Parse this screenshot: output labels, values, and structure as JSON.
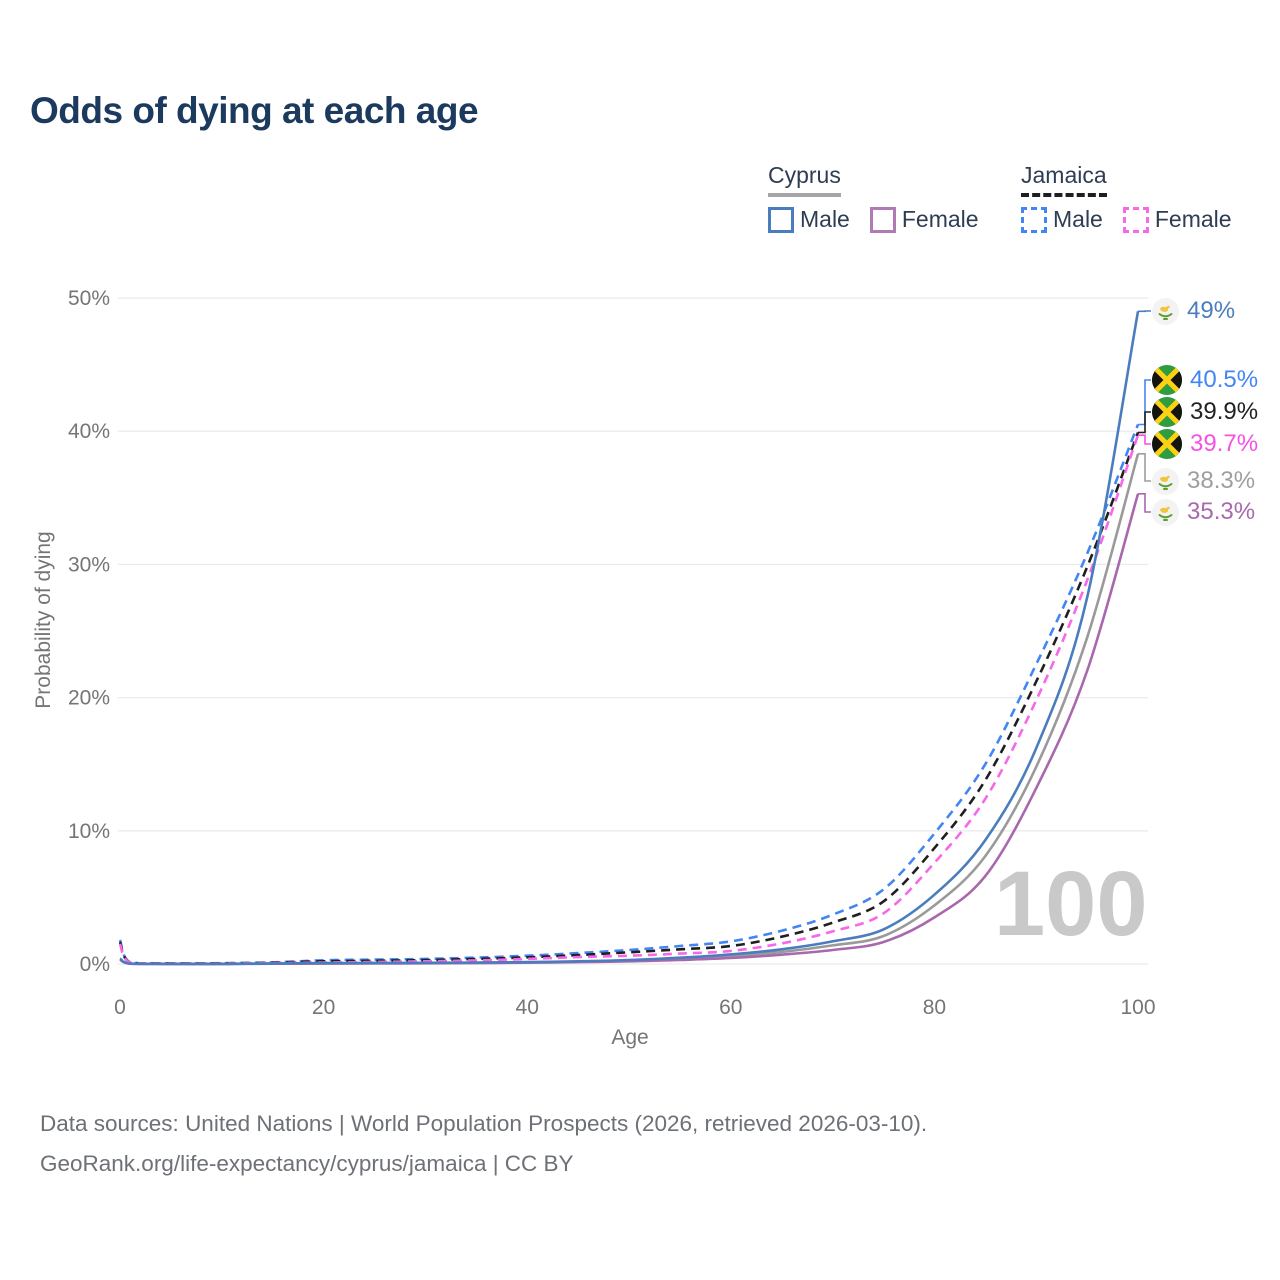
{
  "title": "Odds of dying at each age",
  "legend": {
    "groups": [
      {
        "label": "Cyprus",
        "line_style": "solid",
        "underline_color": "#a6a6a6",
        "items": [
          {
            "label": "Male",
            "color": "#4a7dbd",
            "dashed": false
          },
          {
            "label": "Female",
            "color": "#b07ab5",
            "dashed": false
          }
        ]
      },
      {
        "label": "Jamaica",
        "line_style": "dashed",
        "underline_color": "#1f1f1f",
        "items": [
          {
            "label": "Male",
            "color": "#4285f4",
            "dashed": true
          },
          {
            "label": "Female",
            "color": "#f768e8",
            "dashed": true
          }
        ]
      }
    ]
  },
  "y_axis": {
    "label": "Probability of dying",
    "ticks": [
      "0%",
      "10%",
      "20%",
      "30%",
      "40%",
      "50%"
    ],
    "tick_values": [
      0,
      10,
      20,
      30,
      40,
      50
    ]
  },
  "x_axis": {
    "label": "Age",
    "ticks": [
      "0",
      "20",
      "40",
      "60",
      "80",
      "100"
    ],
    "tick_values": [
      0,
      20,
      40,
      60,
      80,
      100
    ]
  },
  "watermark": "100",
  "footer": {
    "line1": "Data sources: United Nations | World Population Prospects (2026, retrieved 2026-03-10).",
    "line2": "GeoRank.org/life-expectancy/cyprus/jamaica | CC BY"
  },
  "chart_data": {
    "type": "line",
    "title": "Odds of dying at each age",
    "xlabel": "Age",
    "ylabel": "Probability of dying",
    "xlim": [
      0,
      100
    ],
    "ylim": [
      0,
      50
    ],
    "y_unit": "%",
    "grid": "horizontal",
    "x": [
      0,
      1,
      5,
      10,
      15,
      20,
      25,
      30,
      35,
      40,
      45,
      50,
      55,
      60,
      65,
      70,
      75,
      80,
      85,
      90,
      95,
      100
    ],
    "series": [
      {
        "name": "Cyprus Male",
        "country": "Cyprus",
        "sex": "Male",
        "color": "#4a7dbd",
        "dashed": false,
        "values": [
          0.4,
          0.03,
          0.01,
          0.01,
          0.04,
          0.07,
          0.08,
          0.09,
          0.11,
          0.14,
          0.2,
          0.3,
          0.47,
          0.72,
          1.1,
          1.7,
          2.6,
          5.2,
          9.3,
          16.2,
          27.5,
          49
        ]
      },
      {
        "name": "Cyprus Female",
        "country": "Cyprus",
        "sex": "Female",
        "color": "#a968ad",
        "dashed": false,
        "values": [
          0.33,
          0.02,
          0.008,
          0.008,
          0.02,
          0.03,
          0.04,
          0.05,
          0.07,
          0.1,
          0.14,
          0.2,
          0.3,
          0.45,
          0.7,
          1.05,
          1.65,
          3.5,
          6.6,
          13.2,
          22,
          35.3
        ]
      },
      {
        "name": "Cyprus Both sexes",
        "country": "Cyprus",
        "sex": "Both",
        "color": "#9a9a9a",
        "dashed": false,
        "values": [
          0.37,
          0.025,
          0.009,
          0.009,
          0.03,
          0.05,
          0.06,
          0.07,
          0.09,
          0.12,
          0.17,
          0.25,
          0.38,
          0.58,
          0.9,
          1.4,
          2.1,
          4.4,
          8.1,
          14.8,
          24.5,
          38.3
        ]
      },
      {
        "name": "Jamaica Male",
        "country": "Jamaica",
        "sex": "Male",
        "color": "#4285f4",
        "dashed": true,
        "values": [
          1.8,
          0.12,
          0.05,
          0.06,
          0.12,
          0.28,
          0.33,
          0.38,
          0.48,
          0.62,
          0.82,
          1.05,
          1.35,
          1.7,
          2.5,
          3.7,
          5.6,
          9.8,
          15,
          22.5,
          30.8,
          40.5
        ]
      },
      {
        "name": "Jamaica Female",
        "country": "Jamaica",
        "sex": "Female",
        "color": "#f768e8",
        "dashed": true,
        "values": [
          1.5,
          0.1,
          0.035,
          0.04,
          0.07,
          0.11,
          0.15,
          0.2,
          0.27,
          0.38,
          0.52,
          0.62,
          0.78,
          0.98,
          1.55,
          2.45,
          3.8,
          7.6,
          12.4,
          19.8,
          28.8,
          39.7
        ]
      },
      {
        "name": "Jamaica Both sexes",
        "country": "Jamaica",
        "sex": "Both",
        "color": "#1f1f1f",
        "dashed": true,
        "values": [
          1.65,
          0.11,
          0.045,
          0.05,
          0.1,
          0.2,
          0.24,
          0.29,
          0.38,
          0.5,
          0.67,
          0.88,
          1.1,
          1.35,
          2.05,
          3.1,
          4.7,
          8.7,
          13.8,
          21.2,
          29.8,
          39.9
        ]
      }
    ],
    "end_labels": [
      {
        "text": "49%",
        "value": 49,
        "series": "Cyprus Male",
        "flag": "cyprus",
        "color": "#4a7dbd"
      },
      {
        "text": "40.5%",
        "value": 40.5,
        "series": "Jamaica Male",
        "flag": "jamaica",
        "color": "#4285f4"
      },
      {
        "text": "39.9%",
        "value": 39.9,
        "series": "Jamaica Both sexes",
        "flag": "jamaica",
        "color": "#212121"
      },
      {
        "text": "39.7%",
        "value": 39.7,
        "series": "Jamaica Female",
        "flag": "jamaica",
        "color": "#f552e3"
      },
      {
        "text": "38.3%",
        "value": 38.3,
        "series": "Cyprus Both sexes",
        "flag": "cyprus",
        "color": "#9e9e9e"
      },
      {
        "text": "35.3%",
        "value": 35.3,
        "series": "Cyprus Female",
        "flag": "cyprus",
        "color": "#a968ad"
      }
    ]
  }
}
